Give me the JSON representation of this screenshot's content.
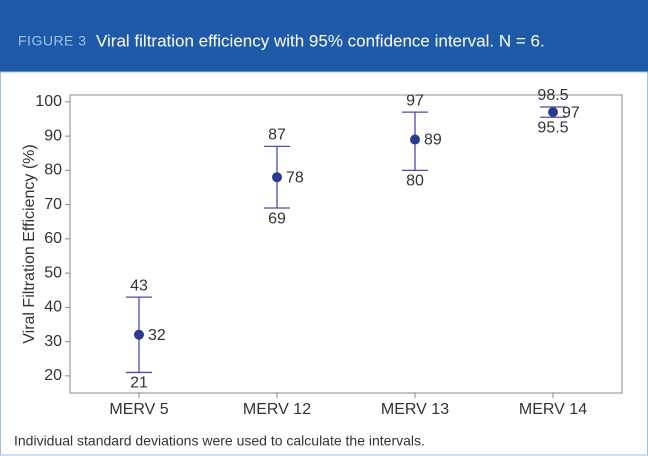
{
  "figure_label": "FIGURE 3",
  "note": "Individual standard deviations were used to calculate the intervals.",
  "chart_data": {
    "type": "errorbar",
    "title": "Viral filtration efficiency with 95% confidence interval. N = 6.",
    "ylabel": "Viral Filtration Efficiency (%)",
    "categories": [
      "MERV 5",
      "MERV 12",
      "MERV 13",
      "MERV 14"
    ],
    "values": [
      32,
      78,
      89,
      97
    ],
    "lower": [
      21,
      69,
      80,
      95.5
    ],
    "upper": [
      43,
      87,
      97,
      98.5
    ],
    "color": "#2b3990",
    "errorbar_color": "#4b4bb0",
    "ylim": [
      15,
      102
    ],
    "yticks": [
      20,
      30,
      40,
      50,
      60,
      70,
      80,
      90,
      100
    ],
    "grid": false
  }
}
